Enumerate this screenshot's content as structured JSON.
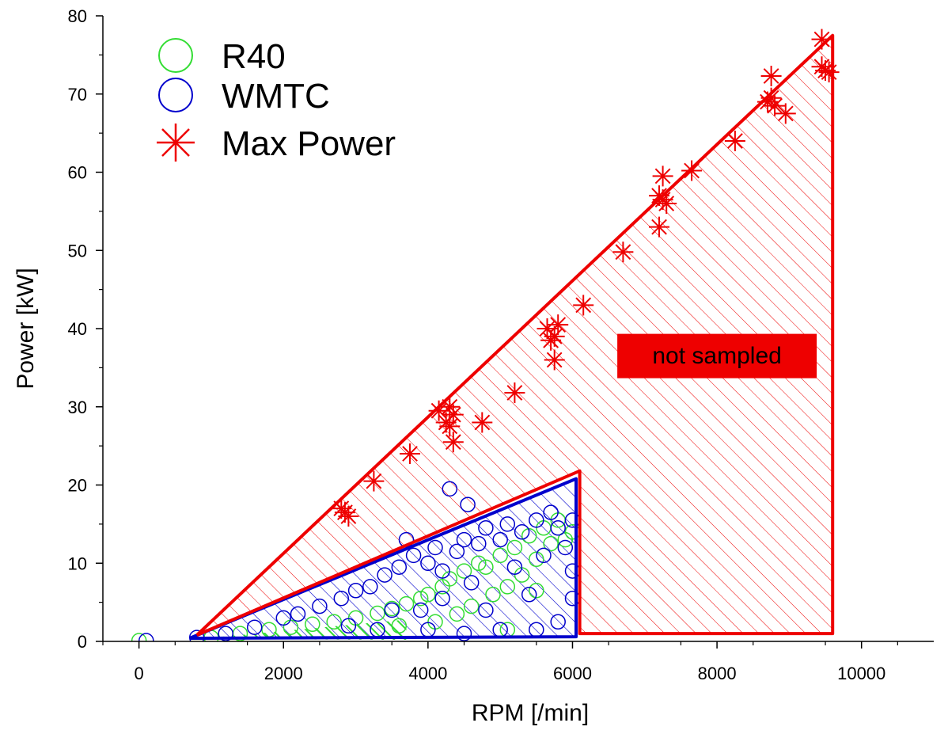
{
  "chart_data": {
    "type": "scatter",
    "title": "",
    "xlabel": "RPM [/min]",
    "ylabel": "Power [kW]",
    "xlim": [
      -500,
      11000
    ],
    "ylim": [
      0,
      80
    ],
    "x_ticks": [
      0,
      2000,
      4000,
      6000,
      8000,
      10000
    ],
    "y_ticks": [
      0,
      10,
      20,
      30,
      40,
      50,
      60,
      70,
      80
    ],
    "grid": false,
    "legend_position": "top-left",
    "series": [
      {
        "name": "R40",
        "marker": "open-circle",
        "color": "#33dd33",
        "points": [
          [
            0,
            0.1
          ],
          [
            1000,
            0.5
          ],
          [
            1400,
            1.0
          ],
          [
            1800,
            1.5
          ],
          [
            2100,
            1.8
          ],
          [
            2400,
            2.2
          ],
          [
            2700,
            2.5
          ],
          [
            3000,
            3.0
          ],
          [
            3300,
            3.6
          ],
          [
            3500,
            4.2
          ],
          [
            3700,
            4.8
          ],
          [
            3900,
            5.5
          ],
          [
            4000,
            6.0
          ],
          [
            4200,
            7.0
          ],
          [
            4300,
            8.0
          ],
          [
            4500,
            9.0
          ],
          [
            4700,
            10.0
          ],
          [
            4800,
            9.5
          ],
          [
            5000,
            11.0
          ],
          [
            5200,
            12.0
          ],
          [
            5400,
            13.5
          ],
          [
            5600,
            14.5
          ],
          [
            5700,
            12.5
          ],
          [
            5800,
            15.5
          ],
          [
            5900,
            13.0
          ],
          [
            6000,
            14.0
          ],
          [
            5500,
            10.5
          ],
          [
            5300,
            8.5
          ],
          [
            5100,
            7.0
          ],
          [
            4900,
            6.0
          ],
          [
            4600,
            4.5
          ],
          [
            4400,
            3.5
          ],
          [
            4100,
            2.5
          ],
          [
            5100,
            1.5
          ],
          [
            5500,
            6.5
          ],
          [
            3600,
            2.0
          ]
        ]
      },
      {
        "name": "WMTC",
        "marker": "open-circle",
        "color": "#0000cc",
        "points": [
          [
            100,
            0.1
          ],
          [
            800,
            0.5
          ],
          [
            1200,
            1.0
          ],
          [
            1600,
            1.8
          ],
          [
            2000,
            3.0
          ],
          [
            2200,
            3.5
          ],
          [
            2500,
            4.5
          ],
          [
            2800,
            5.5
          ],
          [
            3000,
            6.5
          ],
          [
            3200,
            7.0
          ],
          [
            3400,
            8.5
          ],
          [
            3600,
            9.5
          ],
          [
            3700,
            13.0
          ],
          [
            3800,
            11.0
          ],
          [
            4000,
            10.0
          ],
          [
            4100,
            12.0
          ],
          [
            4200,
            9.0
          ],
          [
            4300,
            19.5
          ],
          [
            4400,
            11.5
          ],
          [
            4500,
            13.0
          ],
          [
            4550,
            17.5
          ],
          [
            4700,
            12.5
          ],
          [
            4800,
            14.5
          ],
          [
            5000,
            13.0
          ],
          [
            5100,
            15.0
          ],
          [
            5300,
            14.0
          ],
          [
            5500,
            15.5
          ],
          [
            5700,
            16.5
          ],
          [
            5800,
            14.5
          ],
          [
            6000,
            15.5
          ],
          [
            5900,
            12.0
          ],
          [
            6000,
            9.0
          ],
          [
            6000,
            5.5
          ],
          [
            5800,
            2.5
          ],
          [
            5500,
            1.5
          ],
          [
            5000,
            1.5
          ],
          [
            4500,
            1.0
          ],
          [
            4000,
            1.5
          ],
          [
            3900,
            4.0
          ],
          [
            4200,
            5.5
          ],
          [
            4600,
            7.5
          ],
          [
            5200,
            9.5
          ],
          [
            5600,
            11.0
          ],
          [
            4800,
            4.0
          ],
          [
            3500,
            4.0
          ],
          [
            2900,
            2.0
          ],
          [
            3300,
            1.5
          ],
          [
            5400,
            6.0
          ]
        ]
      },
      {
        "name": "Max Power",
        "marker": "asterisk",
        "color": "#ee0000",
        "points": [
          [
            2800,
            17.0
          ],
          [
            2850,
            16.5
          ],
          [
            2900,
            16.0
          ],
          [
            3250,
            20.5
          ],
          [
            3750,
            24.0
          ],
          [
            4150,
            29.5
          ],
          [
            4250,
            28.0
          ],
          [
            4300,
            27.5
          ],
          [
            4350,
            29.0
          ],
          [
            4350,
            25.5
          ],
          [
            4300,
            30.0
          ],
          [
            4750,
            28.0
          ],
          [
            5200,
            31.8
          ],
          [
            5650,
            40.0
          ],
          [
            5700,
            38.5
          ],
          [
            5750,
            36.0
          ],
          [
            5800,
            40.5
          ],
          [
            5750,
            39.0
          ],
          [
            6150,
            43.0
          ],
          [
            6700,
            49.8
          ],
          [
            7200,
            57.0
          ],
          [
            7250,
            59.5
          ],
          [
            7300,
            56.0
          ],
          [
            7200,
            53.0
          ],
          [
            7250,
            56.5
          ],
          [
            7650,
            60.2
          ],
          [
            8250,
            64.0
          ],
          [
            8700,
            69.0
          ],
          [
            8750,
            72.3
          ],
          [
            8800,
            68.5
          ],
          [
            8750,
            69.5
          ],
          [
            8950,
            67.5
          ],
          [
            9450,
            77.0
          ],
          [
            9500,
            73.0
          ],
          [
            9550,
            72.8
          ],
          [
            9450,
            73.5
          ]
        ]
      }
    ],
    "envelopes": {
      "max": [
        [
          800,
          0.8
        ],
        [
          9600,
          77.5
        ],
        [
          9600,
          1.0
        ],
        [
          6100,
          1.0
        ],
        [
          6100,
          21.8
        ],
        [
          800,
          0.8
        ]
      ],
      "wmtc": [
        [
          700,
          0.4
        ],
        [
          6050,
          20.8
        ],
        [
          6050,
          0.6
        ],
        [
          700,
          0.4
        ]
      ],
      "r40": [
        [
          800,
          0.3
        ],
        [
          3700,
          2.8
        ],
        [
          3700,
          0.2
        ],
        [
          800,
          0.3
        ]
      ]
    },
    "annotation": {
      "text": "not sampled",
      "x": 8000,
      "y": 36.5,
      "color": "#ee0000"
    }
  }
}
